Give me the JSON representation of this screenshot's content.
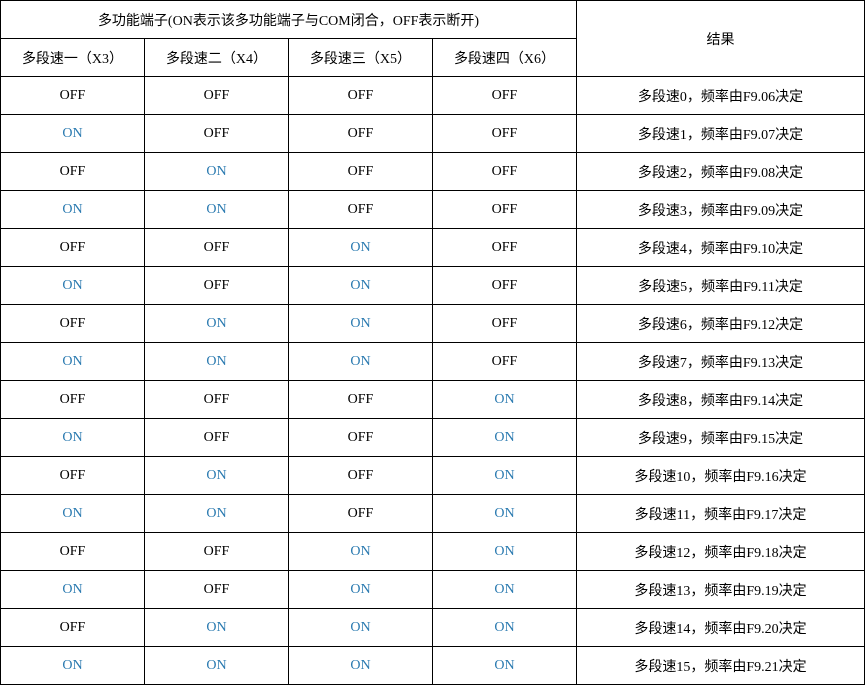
{
  "header": {
    "group_title": "多功能端子(ON表示该多功能端子与COM闭合，OFF表示断开)",
    "result_title": "结果",
    "columns": [
      "多段速一（X3）",
      "多段速二（X4）",
      "多段速三（X5）",
      "多段速四（X6）"
    ]
  },
  "colors": {
    "on": "#2a7ab0",
    "off": "#000000"
  },
  "rows": [
    {
      "cells": [
        "OFF",
        "OFF",
        "OFF",
        "OFF"
      ],
      "result": "多段速0，频率由F9.06决定"
    },
    {
      "cells": [
        "ON",
        "OFF",
        "OFF",
        "OFF"
      ],
      "result": "多段速1，频率由F9.07决定"
    },
    {
      "cells": [
        "OFF",
        "ON",
        "OFF",
        "OFF"
      ],
      "result": "多段速2，频率由F9.08决定"
    },
    {
      "cells": [
        "ON",
        "ON",
        "OFF",
        "OFF"
      ],
      "result": "多段速3，频率由F9.09决定"
    },
    {
      "cells": [
        "OFF",
        "OFF",
        "ON",
        "OFF"
      ],
      "result": "多段速4，频率由F9.10决定"
    },
    {
      "cells": [
        "ON",
        "OFF",
        "ON",
        "OFF"
      ],
      "result": "多段速5，频率由F9.11决定"
    },
    {
      "cells": [
        "OFF",
        "ON",
        "ON",
        "OFF"
      ],
      "result": "多段速6，频率由F9.12决定"
    },
    {
      "cells": [
        "ON",
        "ON",
        "ON",
        "OFF"
      ],
      "result": "多段速7，频率由F9.13决定"
    },
    {
      "cells": [
        "OFF",
        "OFF",
        "OFF",
        "ON"
      ],
      "result": "多段速8，频率由F9.14决定"
    },
    {
      "cells": [
        "ON",
        "OFF",
        "OFF",
        "ON"
      ],
      "result": "多段速9，频率由F9.15决定"
    },
    {
      "cells": [
        "OFF",
        "ON",
        "OFF",
        "ON"
      ],
      "result": "多段速10，频率由F9.16决定"
    },
    {
      "cells": [
        "ON",
        "ON",
        "OFF",
        "ON"
      ],
      "result": "多段速11，频率由F9.17决定"
    },
    {
      "cells": [
        "OFF",
        "OFF",
        "ON",
        "ON"
      ],
      "result": "多段速12，频率由F9.18决定"
    },
    {
      "cells": [
        "ON",
        "OFF",
        "ON",
        "ON"
      ],
      "result": "多段速13，频率由F9.19决定"
    },
    {
      "cells": [
        "OFF",
        "ON",
        "ON",
        "ON"
      ],
      "result": "多段速14，频率由F9.20决定"
    },
    {
      "cells": [
        "ON",
        "ON",
        "ON",
        "ON"
      ],
      "result": "多段速15，频率由F9.21决定"
    }
  ]
}
